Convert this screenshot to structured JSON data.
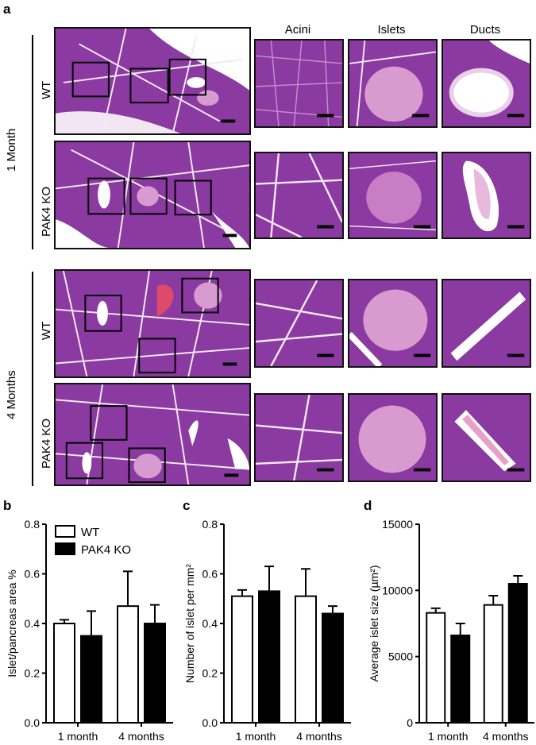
{
  "figure": {
    "panel_a": "a",
    "columns": [
      "Acini",
      "Islets",
      "Ducts"
    ],
    "groups": [
      "1 Month",
      "4 Months"
    ],
    "genotypes": [
      "WT",
      "PAK4 KO"
    ]
  },
  "colors": {
    "tissue_base": "#8a3aa0",
    "tissue_dark": "#5e1f74",
    "islet": "#d79bd0",
    "bar_wt": "#ffffff",
    "bar_ko": "#000000"
  },
  "legend": {
    "wt": "WT",
    "ko": "PAK4 KO"
  },
  "chart_data": [
    {
      "panel": "b",
      "type": "bar",
      "categories": [
        "1 month",
        "4 months"
      ],
      "series": [
        {
          "name": "WT",
          "values": [
            0.4,
            0.47
          ],
          "errors": [
            0.015,
            0.14
          ]
        },
        {
          "name": "PAK4 KO",
          "values": [
            0.35,
            0.4
          ],
          "errors": [
            0.1,
            0.075
          ]
        }
      ],
      "ylabel": "Islet/pancreas area %",
      "ylim": [
        0,
        0.8
      ],
      "yticks": [
        "0.0",
        "0.2",
        "0.4",
        "0.6",
        "0.8"
      ],
      "yticks_values": [
        0,
        0.2,
        0.4,
        0.6,
        0.8
      ]
    },
    {
      "panel": "c",
      "type": "bar",
      "categories": [
        "1 month",
        "4 months"
      ],
      "series": [
        {
          "name": "WT",
          "values": [
            0.51,
            0.51
          ],
          "errors": [
            0.025,
            0.11
          ]
        },
        {
          "name": "PAK4 KO",
          "values": [
            0.53,
            0.44
          ],
          "errors": [
            0.1,
            0.03
          ]
        }
      ],
      "ylabel": "Number of islet per mm²",
      "ylim": [
        0,
        0.8
      ],
      "yticks": [
        "0.0",
        "0.2",
        "0.4",
        "0.6",
        "0.8"
      ],
      "yticks_values": [
        0,
        0.2,
        0.4,
        0.6,
        0.8
      ]
    },
    {
      "panel": "d",
      "type": "bar",
      "categories": [
        "1 month",
        "4 months"
      ],
      "series": [
        {
          "name": "WT",
          "values": [
            8300,
            8900
          ],
          "errors": [
            350,
            700
          ]
        },
        {
          "name": "PAK4 KO",
          "values": [
            6600,
            10500
          ],
          "errors": [
            900,
            600
          ]
        }
      ],
      "ylabel": "Average islet size (µm²)",
      "ylim": [
        0,
        15000
      ],
      "yticks": [
        "0",
        "5000",
        "10000",
        "15000"
      ],
      "yticks_values": [
        0,
        5000,
        10000,
        15000
      ]
    }
  ]
}
